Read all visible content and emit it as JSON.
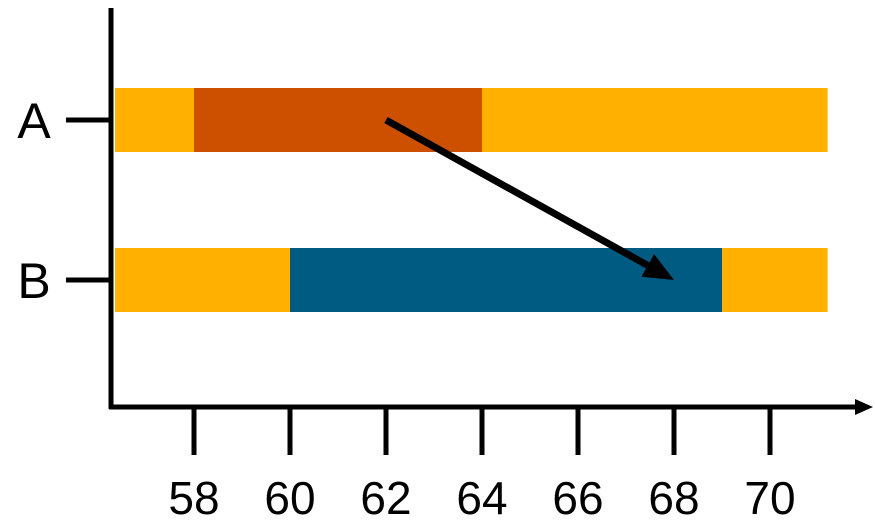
{
  "chart_data": {
    "type": "bar",
    "orientation": "horizontal-range",
    "title": "",
    "xlabel": "",
    "ylabel": "",
    "xlim": [
      56.2,
      71.2
    ],
    "x_ticks": [
      58,
      60,
      62,
      64,
      66,
      68,
      70
    ],
    "x_tick_labels": [
      "58",
      "60",
      "62",
      "64",
      "66",
      "68",
      "70"
    ],
    "grid": false,
    "rows": [
      {
        "label": "A",
        "base": {
          "start": 56.2,
          "end": 71.2,
          "color": "#ffb000"
        },
        "highlight": {
          "start": 58.0,
          "end": 64.0,
          "color": "#cc5000"
        }
      },
      {
        "label": "B",
        "base": {
          "start": 56.2,
          "end": 71.2,
          "color": "#ffb000"
        },
        "highlight": {
          "start": 60.0,
          "end": 69.0,
          "color": "#005b82"
        }
      }
    ],
    "annotations": [
      {
        "type": "arrow",
        "from": {
          "x": 62.0,
          "row": "A"
        },
        "to": {
          "x": 68.0,
          "row": "B"
        },
        "color": "#000000"
      }
    ]
  }
}
